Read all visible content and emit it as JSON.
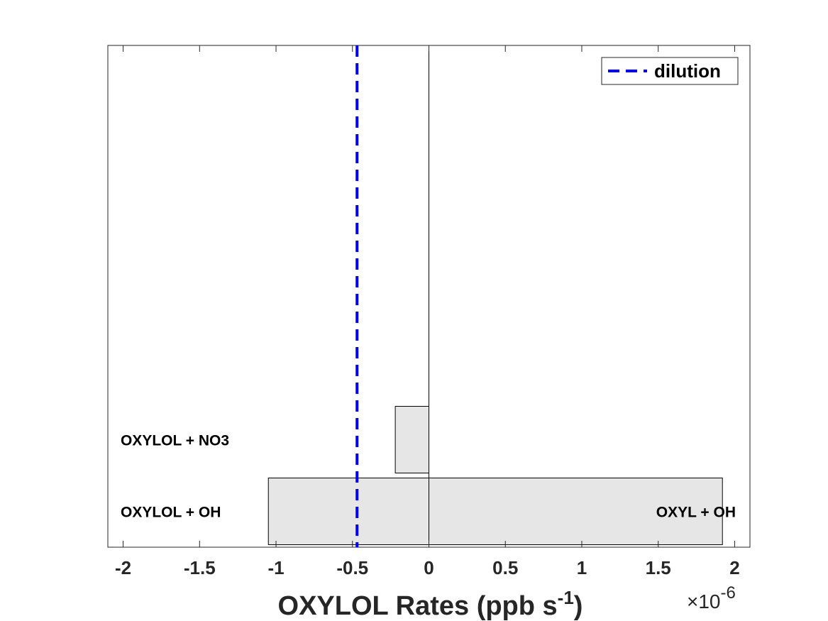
{
  "chart_data": {
    "type": "bar",
    "orientation": "horizontal",
    "xlabel": {
      "main": "OXYLOL Rates (ppb s",
      "superscript": "-1",
      "close": ")"
    },
    "x_multiplier": {
      "prefix": "×10",
      "exponent": "-6"
    },
    "xlim": [
      -2.1,
      2.1
    ],
    "xticks": [
      {
        "value": -2,
        "label": "-2"
      },
      {
        "value": -1.5,
        "label": "-1.5"
      },
      {
        "value": -1,
        "label": "-1"
      },
      {
        "value": -0.5,
        "label": "-0.5"
      },
      {
        "value": 0,
        "label": "0"
      },
      {
        "value": 0.5,
        "label": "0.5"
      },
      {
        "value": 1,
        "label": "1"
      },
      {
        "value": 1.5,
        "label": "1.5"
      },
      {
        "value": 2,
        "label": "2"
      }
    ],
    "bars": [
      {
        "category_index": 1,
        "start": -1.05,
        "end": 0,
        "label": "OXYLOL + OH",
        "label_side": "left"
      },
      {
        "category_index": 1,
        "start": 0,
        "end": 1.92,
        "label": "OXYL + OH",
        "label_side": "right"
      },
      {
        "category_index": 2,
        "start": -0.22,
        "end": 0,
        "label": "OXYLOL + NO3",
        "label_side": "left"
      }
    ],
    "ylim": [
      0.5,
      7.5
    ],
    "bar_color": "#e6e6e6",
    "dilution": {
      "value": -0.47,
      "color": "#0000ff",
      "style": "dashed"
    },
    "legend": {
      "entries": [
        "dilution"
      ],
      "position": "top-right"
    },
    "grid": false
  }
}
